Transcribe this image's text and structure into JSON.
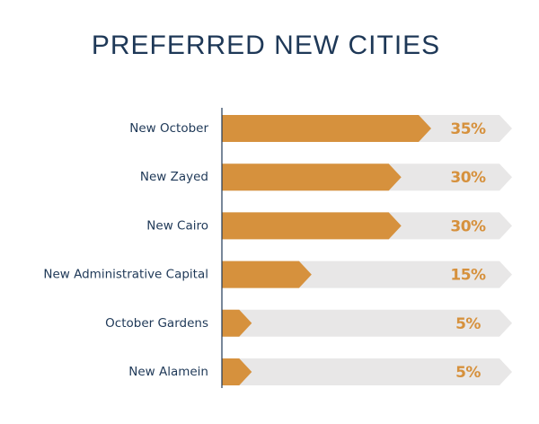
{
  "chart_data": {
    "type": "bar",
    "orientation": "horizontal",
    "title": "PREFERRED NEW CITIES",
    "categories": [
      "New October",
      "New Zayed",
      "New Cairo",
      "New Administrative Capital",
      "October Gardens",
      "New Alamein"
    ],
    "values": [
      35,
      30,
      30,
      15,
      5,
      5
    ],
    "value_labels": [
      "35%",
      "30%",
      "30%",
      "15%",
      "5%",
      "5%"
    ],
    "color": "#d6913d"
  }
}
